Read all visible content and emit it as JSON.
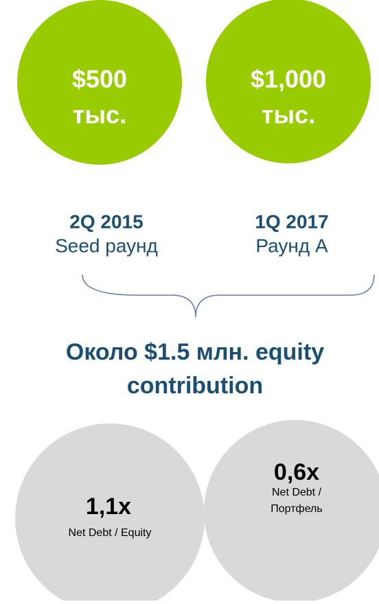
{
  "rounds": [
    {
      "amount": "$500",
      "unit": "тыс.",
      "date": "2Q 2015",
      "name": "Seed раунд"
    },
    {
      "amount": "$1,000",
      "unit": "тыс.",
      "date": "1Q 2017",
      "name": "Раунд A"
    }
  ],
  "summary": [
    "Около $1.5 млн. equity",
    "contribution"
  ],
  "ratios": [
    {
      "value": "1,1x",
      "label": [
        "Net Debt / Equity"
      ]
    },
    {
      "value": "0,6x",
      "label": [
        "Net Debt /",
        "Портфель"
      ]
    }
  ]
}
